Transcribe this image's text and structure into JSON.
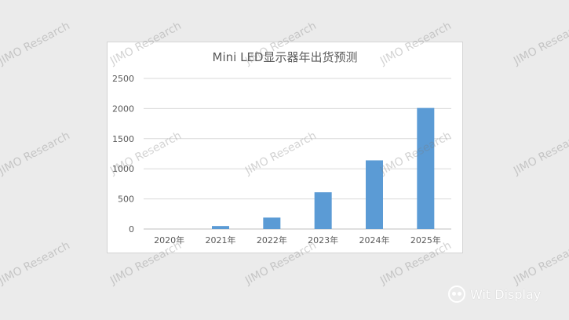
{
  "chart_data": {
    "type": "bar",
    "title": "Mini LED显示器年出货预测",
    "categories": [
      "2020年",
      "2021年",
      "2022年",
      "2023年",
      "2024年",
      "2025年"
    ],
    "values": [
      0,
      50,
      190,
      610,
      1140,
      2010
    ],
    "ylim": [
      0,
      2500
    ],
    "yticks": [
      0,
      500,
      1000,
      1500,
      2000,
      2500
    ],
    "grid": true,
    "bar_color": "#5b9bd5"
  },
  "watermark": "JIMO Research",
  "brand": {
    "name": "Wit Display"
  }
}
